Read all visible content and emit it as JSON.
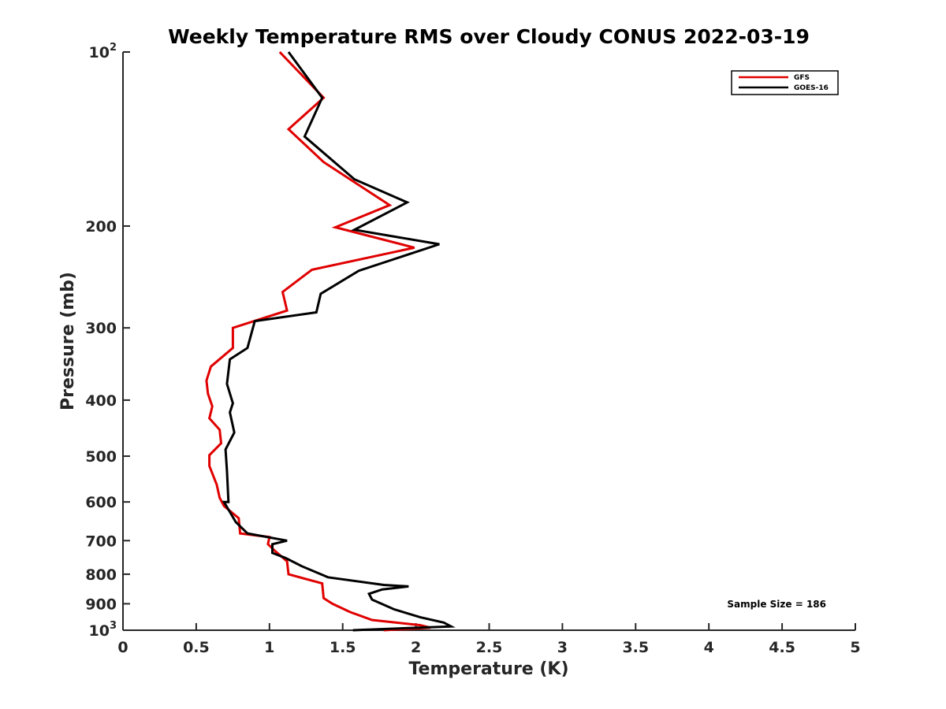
{
  "chart_data": {
    "type": "line",
    "title": "Weekly Temperature RMS over Cloudy CONUS 2022-03-19",
    "xlabel": "Temperature (K)",
    "ylabel": "Pressure (mb)",
    "xlim": [
      0,
      5
    ],
    "ylim": [
      100,
      1000
    ],
    "yscale": "log",
    "yreversed": true,
    "x_ticks": [
      0,
      0.5,
      1,
      1.5,
      2,
      2.5,
      3,
      3.5,
      4,
      4.5,
      5
    ],
    "x_tick_labels": [
      "0",
      "0.5",
      "1",
      "1.5",
      "2",
      "2.5",
      "3",
      "3.5",
      "4",
      "4.5",
      "5"
    ],
    "y_ticks": [
      {
        "value": 100,
        "base": "10",
        "exp": "2"
      },
      {
        "value": 200,
        "label": "200"
      },
      {
        "value": 300,
        "label": "300"
      },
      {
        "value": 400,
        "label": "400"
      },
      {
        "value": 500,
        "label": "500"
      },
      {
        "value": 600,
        "label": "600"
      },
      {
        "value": 700,
        "label": "700"
      },
      {
        "value": 800,
        "label": "800"
      },
      {
        "value": 900,
        "label": "900"
      },
      {
        "value": 1000,
        "base": "10",
        "exp": "3"
      }
    ],
    "legend": {
      "position": "top-right"
    },
    "grid": false,
    "annotation": "Sample Size = 186",
    "series": [
      {
        "name": "GFS",
        "color": "#e00000",
        "points": [
          [
            1.07,
            100
          ],
          [
            1.37,
            120
          ],
          [
            1.13,
            136
          ],
          [
            1.37,
            155
          ],
          [
            1.82,
            184
          ],
          [
            1.45,
            201
          ],
          [
            1.99,
            218
          ],
          [
            1.29,
            238
          ],
          [
            1.09,
            260
          ],
          [
            1.12,
            280
          ],
          [
            0.75,
            300
          ],
          [
            0.75,
            325
          ],
          [
            0.6,
            350
          ],
          [
            0.57,
            370
          ],
          [
            0.58,
            390
          ],
          [
            0.61,
            410
          ],
          [
            0.59,
            430
          ],
          [
            0.66,
            450
          ],
          [
            0.67,
            475
          ],
          [
            0.59,
            498
          ],
          [
            0.59,
            520
          ],
          [
            0.64,
            560
          ],
          [
            0.66,
            590
          ],
          [
            0.69,
            610
          ],
          [
            0.79,
            640
          ],
          [
            0.8,
            680
          ],
          [
            1.0,
            690
          ],
          [
            0.99,
            710
          ],
          [
            1.04,
            730
          ],
          [
            1.12,
            760
          ],
          [
            1.13,
            800
          ],
          [
            1.36,
            830
          ],
          [
            1.37,
            880
          ],
          [
            1.43,
            900
          ],
          [
            1.55,
            930
          ],
          [
            1.7,
            960
          ],
          [
            2.03,
            980
          ],
          [
            2.1,
            990
          ],
          [
            1.78,
            1000
          ]
        ]
      },
      {
        "name": "GOES-16",
        "color": "#000000",
        "points": [
          [
            1.13,
            100
          ],
          [
            1.36,
            120
          ],
          [
            1.24,
            140
          ],
          [
            1.58,
            166
          ],
          [
            1.94,
            182
          ],
          [
            1.58,
            203
          ],
          [
            2.16,
            215
          ],
          [
            1.61,
            239
          ],
          [
            1.35,
            262
          ],
          [
            1.32,
            282
          ],
          [
            0.9,
            292
          ],
          [
            0.85,
            325
          ],
          [
            0.73,
            340
          ],
          [
            0.71,
            375
          ],
          [
            0.75,
            405
          ],
          [
            0.73,
            420
          ],
          [
            0.76,
            455
          ],
          [
            0.7,
            487
          ],
          [
            0.71,
            530
          ],
          [
            0.72,
            600
          ],
          [
            0.69,
            600
          ],
          [
            0.77,
            650
          ],
          [
            0.85,
            680
          ],
          [
            1.12,
            700
          ],
          [
            1.02,
            710
          ],
          [
            1.02,
            735
          ],
          [
            1.11,
            750
          ],
          [
            1.22,
            775
          ],
          [
            1.4,
            810
          ],
          [
            1.78,
            835
          ],
          [
            1.95,
            840
          ],
          [
            1.77,
            850
          ],
          [
            1.68,
            865
          ],
          [
            1.7,
            885
          ],
          [
            1.85,
            920
          ],
          [
            2.03,
            950
          ],
          [
            2.19,
            970
          ],
          [
            2.24,
            985
          ],
          [
            1.57,
            1000
          ]
        ]
      }
    ]
  }
}
